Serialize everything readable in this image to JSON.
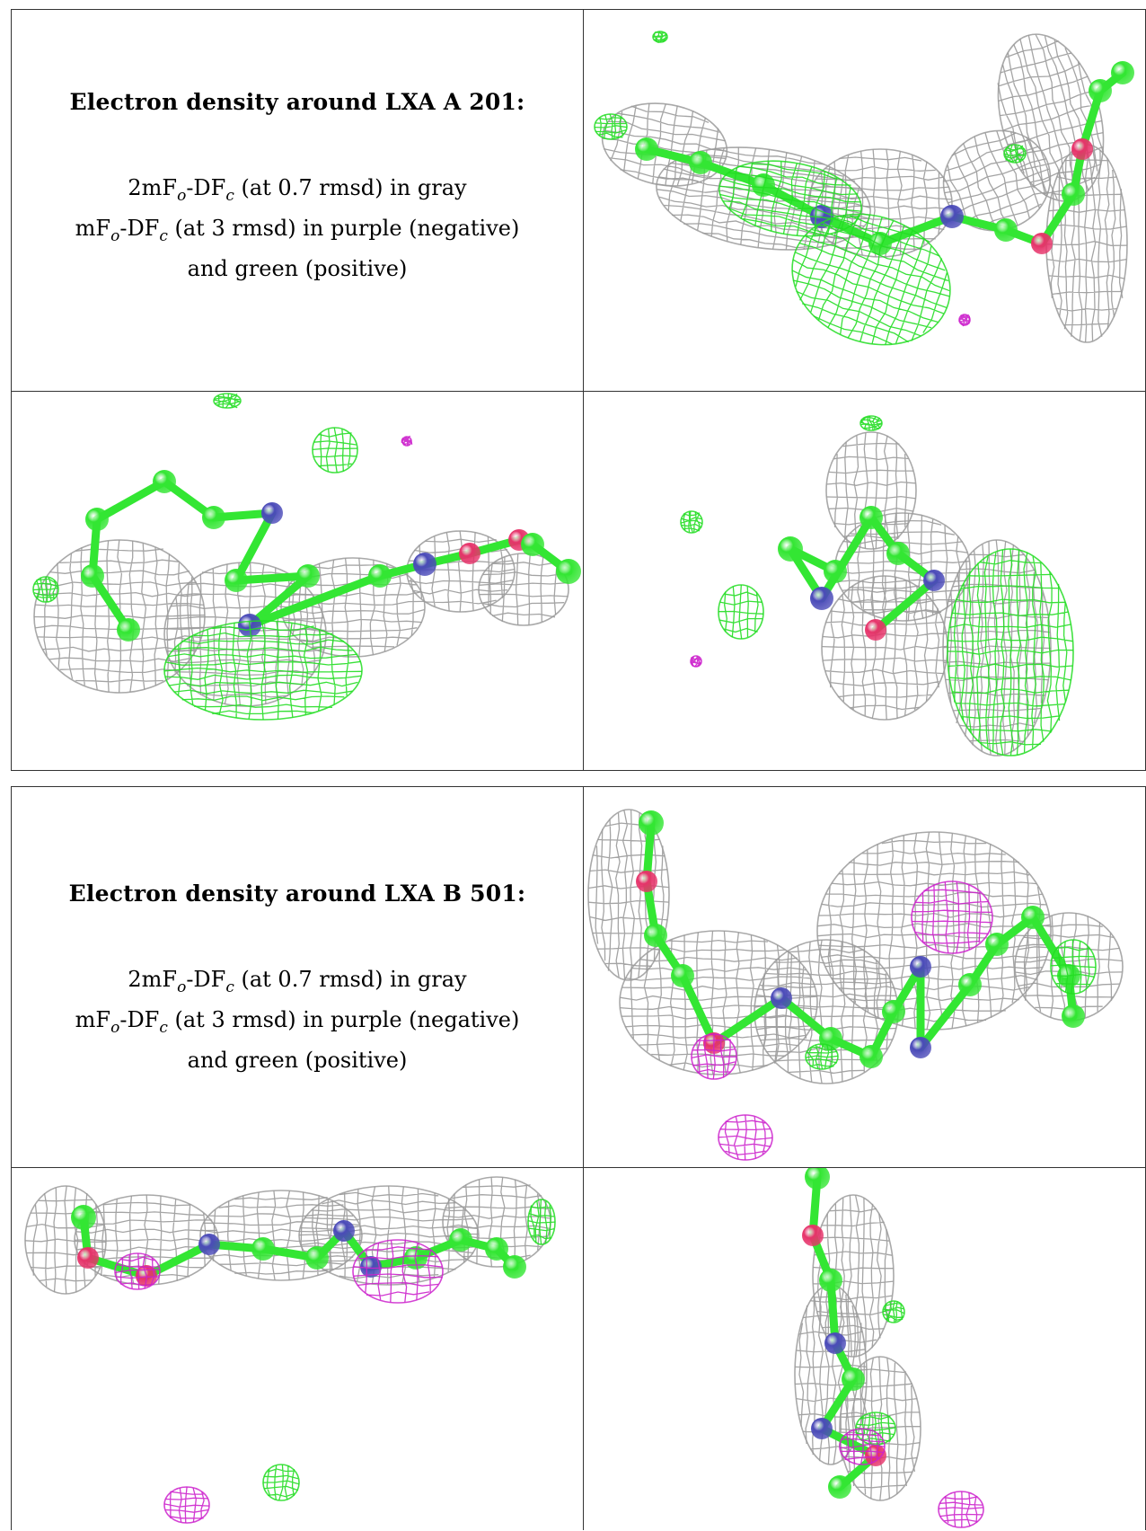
{
  "figure": {
    "blocks": [
      {
        "title": "Electron density around LXA A 201:",
        "line1": "2mF",
        "line2": "mF",
        "line3": "and green (positive)"
      },
      {
        "title": "Electron density around LXA B 501:",
        "line3": "and green (positive)"
      }
    ],
    "legend": {
      "map1_prefix": "2mF",
      "map1_sub1": "o",
      "map1_mid": "-DF",
      "map1_sub2": "c",
      "map1_suffix": " (at 0.7 rmsd) in gray",
      "map2_prefix": "mF",
      "map2_sub1": "o",
      "map2_mid": "-DF",
      "map2_sub2": "c",
      "map2_suffix": " (at 3 rmsd) in purple (negative)",
      "map3": "and green (positive)"
    },
    "colors": {
      "mesh_2fofc": "#9a9a9a",
      "mesh_positive": "#22dd22",
      "mesh_negative": "#cc22cc",
      "carbon": "#33e633",
      "nitrogen": "#4a4ab8",
      "oxygen": "#e6336a"
    }
  }
}
